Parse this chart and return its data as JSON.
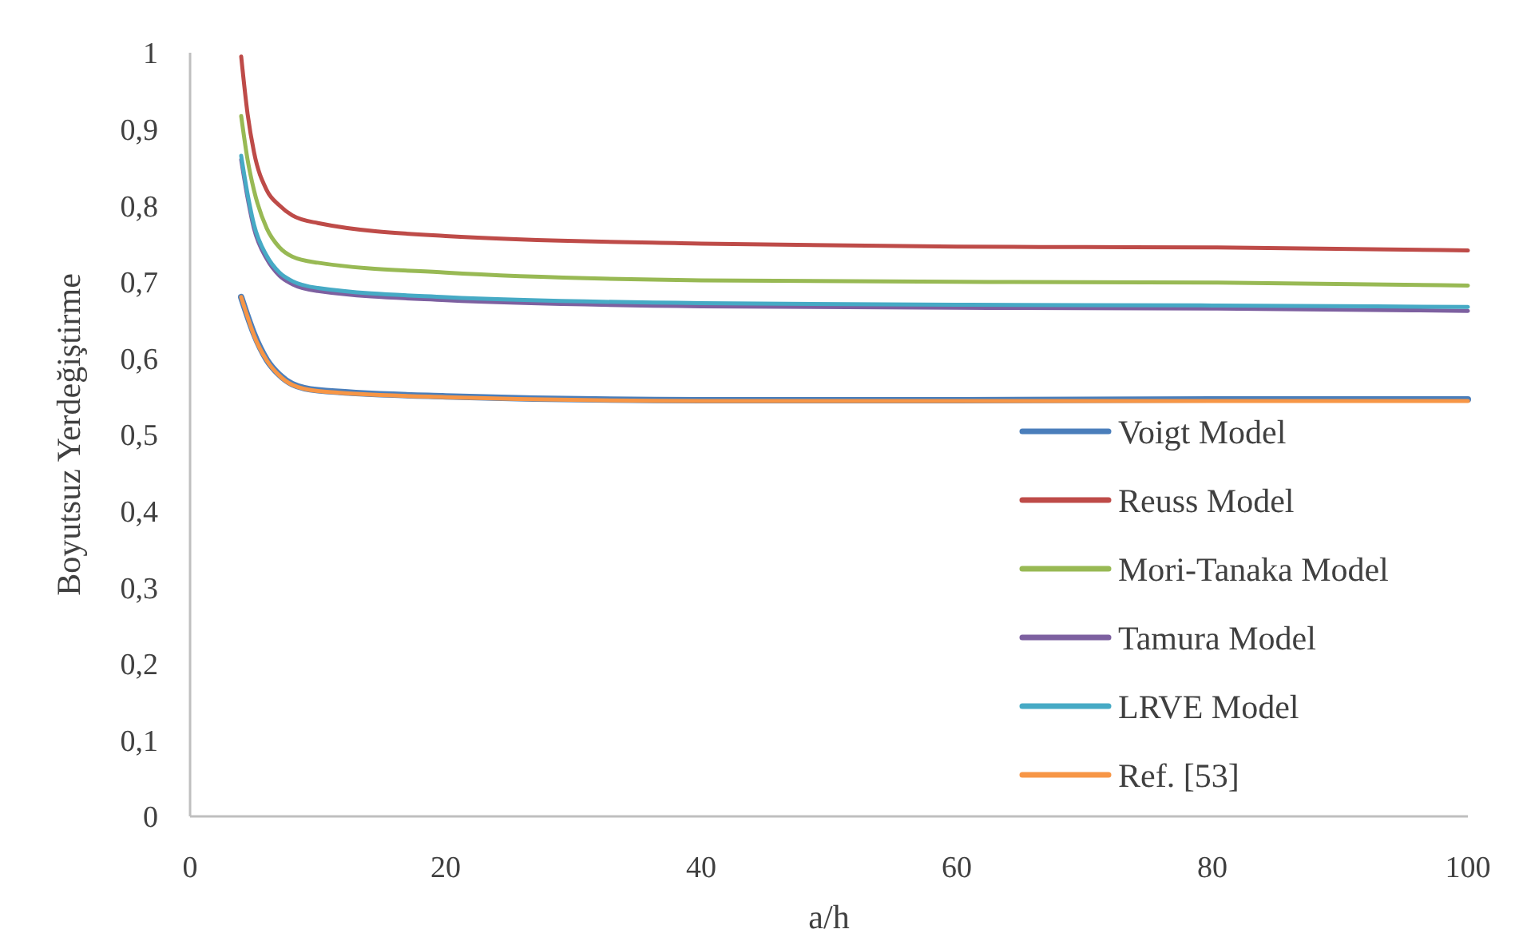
{
  "chart_data": {
    "type": "line",
    "xlabel": "a/h",
    "ylabel": "Boyutsuz Yerdeğiştirme",
    "xlim": [
      0,
      100
    ],
    "xticks": [
      0,
      20,
      40,
      60,
      80,
      100
    ],
    "ylim": [
      0,
      1
    ],
    "yticks": [
      0,
      {
        "value": 0.1,
        "label": "0,1"
      },
      {
        "value": 0.2,
        "label": "0,2"
      },
      {
        "value": 0.3,
        "label": "0,3"
      },
      {
        "value": 0.4,
        "label": "0,4"
      },
      {
        "value": 0.5,
        "label": "0,5"
      },
      {
        "value": 0.6,
        "label": "0,6"
      },
      {
        "value": 0.7,
        "label": "0,7"
      },
      {
        "value": 0.8,
        "label": "0,8"
      },
      {
        "value": 0.9,
        "label": "0,9"
      },
      1
    ],
    "grid": false,
    "legend": "bottom right",
    "marker": "none",
    "line_style": "solid",
    "x": [
      4,
      4.5,
      5,
      6,
      7,
      8,
      10,
      20,
      40,
      60,
      80,
      100
    ],
    "series": [
      {
        "name": "Voigt Model",
        "color": "#4a7ebb",
        "values": [
          0.68,
          0.655,
          0.632,
          0.598,
          0.578,
          0.566,
          0.558,
          0.55,
          0.545,
          0.545,
          0.546,
          0.546
        ]
      },
      {
        "name": "Reuss Model",
        "color": "#be4b48",
        "values": [
          0.995,
          0.92,
          0.87,
          0.82,
          0.8,
          0.787,
          0.777,
          0.76,
          0.75,
          0.746,
          0.745,
          0.741
        ]
      },
      {
        "name": "Mori-Tanaka Model",
        "color": "#98b954",
        "values": [
          0.917,
          0.86,
          0.82,
          0.77,
          0.745,
          0.733,
          0.725,
          0.712,
          0.702,
          0.7,
          0.699,
          0.695
        ]
      },
      {
        "name": "Tamura Model",
        "color": "#7d60a0",
        "values": [
          0.86,
          0.81,
          0.77,
          0.73,
          0.708,
          0.697,
          0.688,
          0.676,
          0.668,
          0.666,
          0.665,
          0.662
        ]
      },
      {
        "name": "LRVE Model",
        "color": "#46aac5",
        "values": [
          0.865,
          0.815,
          0.775,
          0.734,
          0.712,
          0.701,
          0.692,
          0.68,
          0.672,
          0.67,
          0.669,
          0.667
        ]
      },
      {
        "name": "Ref. [53]",
        "color": "#f79646",
        "values": [
          0.68,
          0.654,
          0.63,
          0.597,
          0.577,
          0.565,
          0.557,
          0.549,
          0.544,
          0.544,
          0.544,
          0.544
        ]
      }
    ]
  }
}
